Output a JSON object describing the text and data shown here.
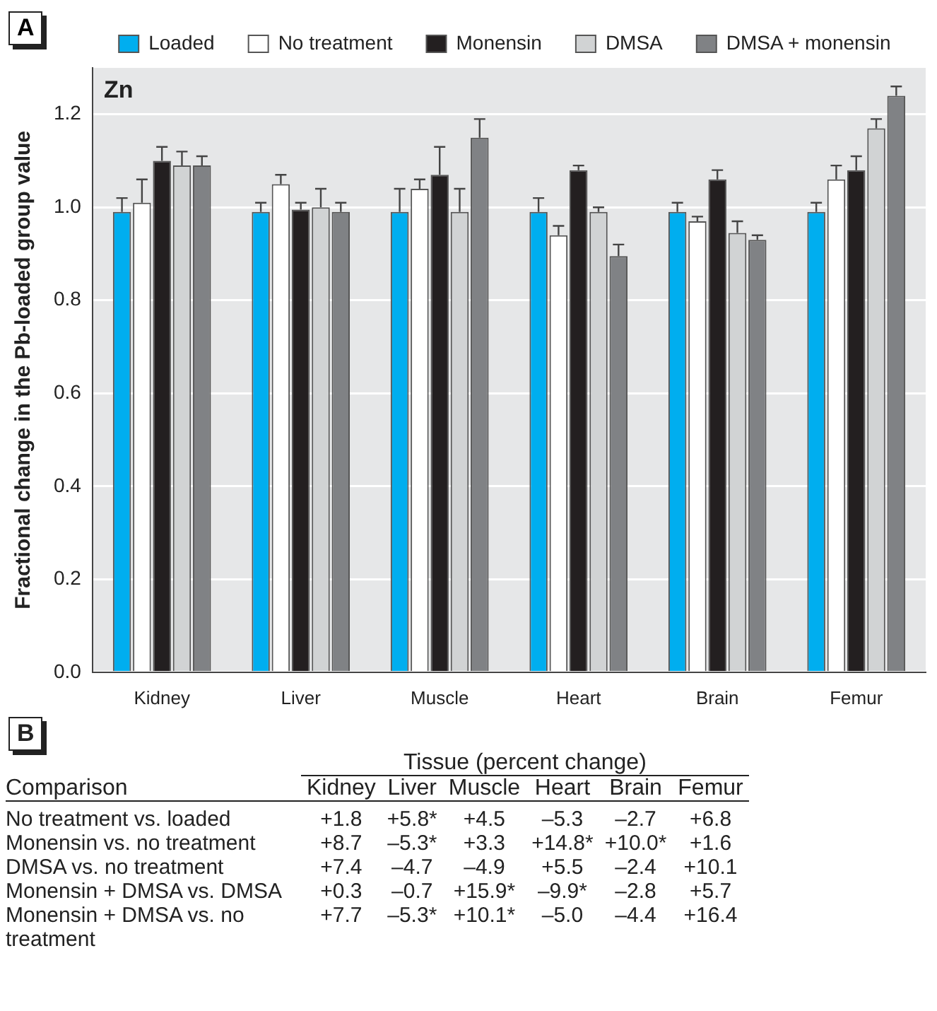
{
  "chart_data": [
    {
      "type": "bar",
      "ylabel": "Fractional change in the Pb-loaded group value",
      "annotations": [
        "A",
        "Zn"
      ],
      "categories": [
        "Kidney",
        "Liver",
        "Muscle",
        "Heart",
        "Brain",
        "Femur"
      ],
      "series": [
        {
          "name": "Loaded",
          "color": "#00aeef",
          "values": [
            0.99,
            0.99,
            0.99,
            0.99,
            0.99,
            0.99
          ],
          "errors": [
            [
              0.99,
              1.02
            ],
            [
              0.99,
              1.01
            ],
            [
              0.99,
              1.04
            ],
            [
              0.99,
              1.02
            ],
            [
              0.99,
              1.01
            ],
            [
              0.99,
              1.01
            ]
          ]
        },
        {
          "name": "No treatment",
          "color": "#ffffff",
          "values": [
            1.01,
            1.05,
            1.04,
            0.94,
            0.97,
            1.06
          ],
          "errors": [
            [
              1.01,
              1.06
            ],
            [
              1.05,
              1.07
            ],
            [
              1.04,
              1.06
            ],
            [
              0.94,
              0.96
            ],
            [
              0.97,
              0.98
            ],
            [
              1.06,
              1.09
            ]
          ]
        },
        {
          "name": "Monensin",
          "color": "#231f20",
          "values": [
            1.1,
            0.995,
            1.07,
            1.08,
            1.06,
            1.08
          ],
          "errors": [
            [
              1.1,
              1.13
            ],
            [
              0.995,
              1.01
            ],
            [
              1.07,
              1.13
            ],
            [
              1.08,
              1.09
            ],
            [
              1.06,
              1.08
            ],
            [
              1.08,
              1.11
            ]
          ]
        },
        {
          "name": "DMSA",
          "color": "#d1d3d4",
          "values": [
            1.09,
            1.0,
            0.99,
            0.99,
            0.945,
            1.17
          ],
          "errors": [
            [
              1.09,
              1.12
            ],
            [
              1.0,
              1.04
            ],
            [
              0.99,
              1.04
            ],
            [
              0.99,
              1.0
            ],
            [
              0.945,
              0.97
            ],
            [
              1.17,
              1.19
            ]
          ]
        },
        {
          "name": "DMSA + monensin",
          "color": "#808285",
          "values": [
            1.09,
            0.99,
            1.15,
            0.895,
            0.93,
            1.24
          ],
          "errors": [
            [
              1.09,
              1.11
            ],
            [
              0.99,
              1.01
            ],
            [
              1.15,
              1.19
            ],
            [
              0.895,
              0.92
            ],
            [
              0.93,
              0.94
            ],
            [
              1.24,
              1.26
            ]
          ]
        }
      ],
      "ylim": [
        0,
        1.3
      ],
      "yticks": [
        {
          "value": 0,
          "label": "0.0"
        },
        {
          "value": 0.2,
          "label": "0.2"
        },
        {
          "value": 0.4,
          "label": "0.4"
        },
        {
          "value": 0.6,
          "label": "0.6"
        },
        {
          "value": 0.8,
          "label": "0.8"
        },
        {
          "value": 1,
          "label": "1.0"
        },
        {
          "value": 1.2,
          "label": "1.2"
        }
      ],
      "grid": "y",
      "legend": "top"
    },
    {
      "type": "other",
      "title": "Tissue (percent change)",
      "ylabel": "Comparison",
      "annotations": [
        "B"
      ],
      "categories": [
        "Kidney",
        "Liver",
        "Muscle",
        "Heart",
        "Brain",
        "Femur"
      ],
      "y_categories": [
        "No treatment vs. loaded",
        "Monensin vs. no treatment",
        "DMSA vs. no treatment",
        "Monensin + DMSA vs. DMSA",
        "Monensin + DMSA vs. no treatment"
      ],
      "cell_labels": [
        [
          "+1.8",
          "+5.8*",
          "+4.5",
          "–5.3",
          "–2.7",
          "+6.8"
        ],
        [
          "+8.7",
          "–5.3*",
          "+3.3",
          "+14.8*",
          "+10.0*",
          "+1.6"
        ],
        [
          "+7.4",
          "–4.7",
          "–4.9",
          "+5.5",
          "–2.4",
          "+10.1"
        ],
        [
          "+0.3",
          "–0.7",
          "+15.9*",
          "–9.9*",
          "–2.8",
          "+5.7"
        ],
        [
          "+7.7",
          "–5.3*",
          "+10.1*",
          "–5.0",
          "–4.4",
          "+16.4"
        ]
      ]
    }
  ]
}
